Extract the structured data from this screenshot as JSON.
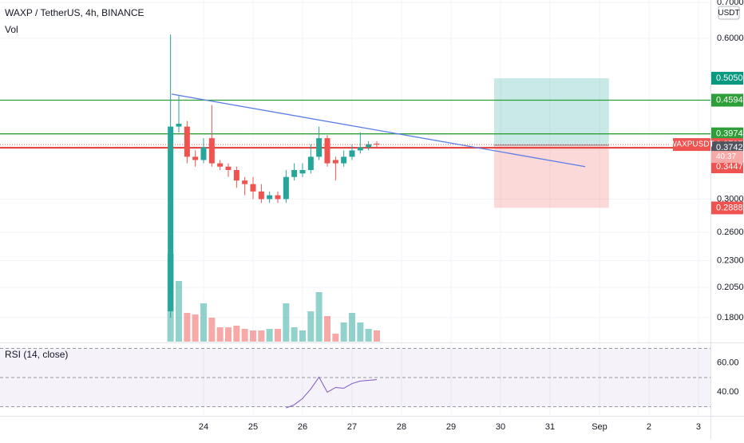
{
  "chart_data": {
    "type": "candlestick",
    "title": "WAXP / TetherUS, 4h, BINANCE",
    "volume_title": "Vol",
    "currency": "USDT",
    "symbol_tag": "WAXPUSDT",
    "countdown": "40:37",
    "log_scale": true,
    "grid": true,
    "up_color": "#26a69a",
    "down_color": "#ef5350",
    "x": [
      23.333,
      23.5,
      23.667,
      23.833,
      24.0,
      24.167,
      24.333,
      24.5,
      24.667,
      24.833,
      25.0,
      25.167,
      25.333,
      25.5,
      25.667,
      25.833,
      26.0,
      26.167,
      26.333,
      26.5,
      26.667,
      26.833,
      27.0,
      27.167,
      27.333,
      27.5
    ],
    "open": [
      0.185,
      0.41,
      0.41,
      0.36,
      0.355,
      0.39,
      0.35,
      0.345,
      0.34,
      0.325,
      0.32,
      0.31,
      0.3,
      0.305,
      0.3,
      0.33,
      0.335,
      0.34,
      0.36,
      0.39,
      0.355,
      0.35,
      0.36,
      0.37,
      0.375,
      0.381
    ],
    "high": [
      0.61,
      0.47,
      0.42,
      0.37,
      0.39,
      0.45,
      0.355,
      0.35,
      0.345,
      0.33,
      0.33,
      0.32,
      0.31,
      0.31,
      0.34,
      0.35,
      0.35,
      0.38,
      0.41,
      0.395,
      0.36,
      0.37,
      0.38,
      0.4,
      0.385,
      0.385
    ],
    "low": [
      0.18,
      0.4,
      0.35,
      0.345,
      0.35,
      0.345,
      0.34,
      0.33,
      0.315,
      0.305,
      0.3,
      0.295,
      0.295,
      0.295,
      0.295,
      0.325,
      0.33,
      0.335,
      0.355,
      0.345,
      0.325,
      0.345,
      0.355,
      0.365,
      0.37,
      0.375
    ],
    "close": [
      0.41,
      0.415,
      0.36,
      0.355,
      0.375,
      0.35,
      0.345,
      0.34,
      0.325,
      0.32,
      0.31,
      0.3,
      0.305,
      0.3,
      0.33,
      0.34,
      0.34,
      0.36,
      0.39,
      0.35,
      0.35,
      0.36,
      0.37,
      0.375,
      0.38,
      0.3795
    ],
    "volume": [
      110,
      76,
      36,
      34,
      48,
      30,
      18,
      18,
      20,
      16,
      14,
      14,
      16,
      16,
      48,
      18,
      14,
      38,
      62,
      32,
      10,
      24,
      36,
      24,
      16,
      14
    ],
    "volume_ylim": [
      0,
      428
    ],
    "xlim": [
      19.887,
      34.242
    ],
    "xticks": [
      24,
      25,
      26,
      27,
      28,
      29,
      30,
      31,
      {
        "value": 32,
        "label": "Sep"
      },
      {
        "value": 33,
        "label": "2"
      },
      {
        "value": 34,
        "label": "3"
      }
    ],
    "ylim": [
      0.1623,
      0.7075
    ],
    "yticks": [
      {
        "value": 0.7,
        "label": "0.7000"
      },
      {
        "value": 0.6,
        "label": "0.6000"
      },
      {
        "value": 0.3,
        "label": "0.3000"
      },
      {
        "value": 0.26,
        "label": "0.2600"
      },
      {
        "value": 0.23,
        "label": "0.2300"
      },
      {
        "value": 0.205,
        "label": "0.2050"
      },
      {
        "value": 0.18,
        "label": "0.1800"
      }
    ],
    "hlines": [
      {
        "value": 0.4594,
        "color": "#2e9e38"
      },
      {
        "value": 0.3974,
        "color": "#2e9e38"
      },
      {
        "value": 0.3742,
        "color": "#e53935"
      }
    ],
    "trendline": {
      "x": [
        23.355,
        31.71
      ],
      "y": [
        0.4716,
        0.345
      ],
      "color": "#5b7ee5"
    },
    "position": {
      "x": [
        29.87,
        32.19
      ],
      "target": 0.505,
      "entry": 0.3785,
      "stop": 0.2888
    },
    "price_labels": [
      {
        "value": 0.505,
        "label": "0.5050",
        "color": "#089981"
      },
      {
        "value": 0.4594,
        "label": "0.4594",
        "color": "#2e9e38"
      },
      {
        "value": 0.3974,
        "label": "0.3974",
        "color": "#2e9e38"
      },
      {
        "value": 0.3795,
        "label": "0.3795",
        "color": "#ef5350"
      },
      {
        "value": 0.3742,
        "label": "0.3742",
        "color": "#50535e"
      },
      {
        "value": 0.3447,
        "label": "0.3447",
        "color": "#ef5350"
      },
      {
        "value": 0.2888,
        "label": "0.2888",
        "color": "#ef5350"
      }
    ],
    "rsi": {
      "title": "RSI (14, close)",
      "color": "#7e57c2",
      "ylim": [
        23.8,
        73.5
      ],
      "yticks": [
        {
          "value": 60,
          "label": "60.00"
        },
        {
          "value": 40,
          "label": "40.00"
        }
      ],
      "bands": [
        70,
        50,
        30
      ],
      "values": [
        null,
        null,
        null,
        null,
        null,
        null,
        null,
        null,
        null,
        null,
        null,
        null,
        null,
        null,
        29.2,
        31.4,
        35.7,
        42.2,
        50.3,
        40.0,
        43.2,
        42.7,
        45.9,
        47.6,
        48.1,
        48.6
      ]
    }
  }
}
